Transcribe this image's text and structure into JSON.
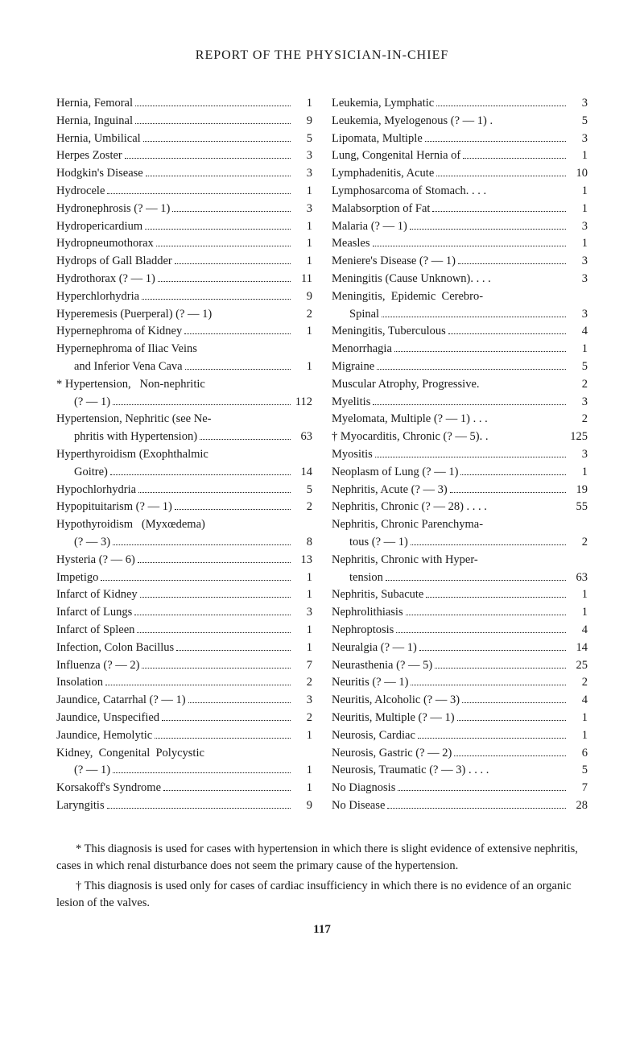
{
  "title": "REPORT OF THE PHYSICIAN-IN-CHIEF",
  "page_number": "117",
  "left": [
    {
      "label": "Hernia, Femoral",
      "num": "1"
    },
    {
      "label": "Hernia, Inguinal",
      "num": "9"
    },
    {
      "label": "Hernia, Umbilical",
      "num": "5"
    },
    {
      "label": "Herpes Zoster",
      "num": "3"
    },
    {
      "label": "Hodgkin's Disease",
      "num": "3"
    },
    {
      "label": "Hydrocele",
      "num": "1"
    },
    {
      "label": "Hydronephrosis (? — 1)",
      "num": "3"
    },
    {
      "label": "Hydropericardium",
      "num": "1"
    },
    {
      "label": "Hydropneumothorax",
      "num": "1"
    },
    {
      "label": "Hydrops of Gall Bladder",
      "num": "1"
    },
    {
      "label": "Hydrothorax (? — 1)",
      "num": "11"
    },
    {
      "label": "Hyperchlorhydria",
      "num": "9"
    },
    {
      "label": "Hyperemesis (Puerperal) (? — 1)",
      "num": "2",
      "nodots": true
    },
    {
      "label": "Hypernephroma of Kidney",
      "num": "1"
    },
    {
      "label": "Hypernephroma of Iliac Veins",
      "cont": true
    },
    {
      "label": "and Inferior Vena Cava",
      "num": "1",
      "indent": true
    },
    {
      "label": "* Hypertension,   Non-nephritic",
      "cont": true
    },
    {
      "label": "(? — 1)",
      "num": "112",
      "indent": true
    },
    {
      "label": "Hypertension, Nephritic (see Ne-",
      "cont": true
    },
    {
      "label": "phritis with Hypertension)",
      "num": "63",
      "indent": true
    },
    {
      "label": "Hyperthyroidism (Exophthalmic",
      "cont": true
    },
    {
      "label": "Goitre)",
      "num": "14",
      "indent": true
    },
    {
      "label": "Hypochlorhydria",
      "num": "5"
    },
    {
      "label": "Hypopituitarism (? — 1)",
      "num": "2"
    },
    {
      "label": "Hypothyroidism   (Myxœdema)",
      "cont": true
    },
    {
      "label": "(? — 3)",
      "num": "8",
      "indent": true
    },
    {
      "label": "Hysteria (? — 6)",
      "num": "13"
    },
    {
      "label": "Impetigo",
      "num": "1"
    },
    {
      "label": "Infarct of Kidney",
      "num": "1"
    },
    {
      "label": "Infarct of Lungs",
      "num": "3"
    },
    {
      "label": "Infarct of Spleen",
      "num": "1"
    },
    {
      "label": "Infection, Colon Bacillus",
      "num": "1"
    },
    {
      "label": "Influenza (? — 2)",
      "num": "7"
    },
    {
      "label": "Insolation",
      "num": "2"
    },
    {
      "label": "Jaundice, Catarrhal (? — 1)",
      "num": "3"
    },
    {
      "label": "Jaundice, Unspecified",
      "num": "2"
    },
    {
      "label": "Jaundice, Hemolytic",
      "num": "1"
    },
    {
      "label": "Kidney,  Congenital  Polycystic",
      "cont": true
    },
    {
      "label": "(? — 1)",
      "num": "1",
      "indent": true
    },
    {
      "label": "Korsakoff's Syndrome",
      "num": "1"
    },
    {
      "label": "Laryngitis",
      "num": "9"
    }
  ],
  "right": [
    {
      "label": "Leukemia, Lymphatic",
      "num": "3"
    },
    {
      "label": "Leukemia, Myelogenous (? — 1) .",
      "num": "5",
      "nodots": true
    },
    {
      "label": "Lipomata, Multiple",
      "num": "3"
    },
    {
      "label": "Lung, Congenital Hernia of",
      "num": "1"
    },
    {
      "label": "Lymphadenitis, Acute",
      "num": "10"
    },
    {
      "label": "Lymphosarcoma of Stomach. . . .",
      "num": "1",
      "nodots": true
    },
    {
      "label": "Malabsorption of Fat",
      "num": "1"
    },
    {
      "label": "Malaria (? — 1)",
      "num": "3"
    },
    {
      "label": "Measles",
      "num": "1"
    },
    {
      "label": "Meniere's Disease (? — 1)",
      "num": "3"
    },
    {
      "label": "Meningitis (Cause Unknown). . . .",
      "num": "3",
      "nodots": true
    },
    {
      "label": "Meningitis,  Epidemic  Cerebro-",
      "cont": true
    },
    {
      "label": "Spinal",
      "num": "3",
      "indent": true
    },
    {
      "label": "Meningitis, Tuberculous",
      "num": "4"
    },
    {
      "label": "Menorrhagia",
      "num": "1"
    },
    {
      "label": "Migraine",
      "num": "5"
    },
    {
      "label": "Muscular Atrophy, Progressive.",
      "num": "2",
      "nodots": true
    },
    {
      "label": "Myelitis",
      "num": "3"
    },
    {
      "label": "Myelomata, Multiple (? — 1) . . .",
      "num": "2",
      "nodots": true
    },
    {
      "label": "† Myocarditis, Chronic (? — 5). .",
      "num": "125",
      "nodots": true
    },
    {
      "label": "Myositis",
      "num": "3"
    },
    {
      "label": "Neoplasm of Lung (? — 1)",
      "num": "1"
    },
    {
      "label": "Nephritis, Acute (? — 3)",
      "num": "19"
    },
    {
      "label": "Nephritis, Chronic (? — 28) . . . .",
      "num": "55",
      "nodots": true
    },
    {
      "label": "Nephritis, Chronic Parenchyma-",
      "cont": true
    },
    {
      "label": "tous (? — 1)",
      "num": "2",
      "indent": true
    },
    {
      "label": "Nephritis, Chronic with Hyper-",
      "cont": true
    },
    {
      "label": "tension",
      "num": "63",
      "indent": true
    },
    {
      "label": "Nephritis, Subacute",
      "num": "1"
    },
    {
      "label": "Nephrolithiasis",
      "num": "1"
    },
    {
      "label": "Nephroptosis",
      "num": "4"
    },
    {
      "label": "Neuralgia (? — 1)",
      "num": "14"
    },
    {
      "label": "Neurasthenia (? — 5)",
      "num": "25"
    },
    {
      "label": "Neuritis (? — 1)",
      "num": "2"
    },
    {
      "label": "Neuritis, Alcoholic (? — 3)",
      "num": "4"
    },
    {
      "label": "Neuritis, Multiple (? — 1)",
      "num": "1"
    },
    {
      "label": "Neurosis, Cardiac",
      "num": "1"
    },
    {
      "label": "Neurosis, Gastric (? — 2)",
      "num": "6"
    },
    {
      "label": "Neurosis, Traumatic (? — 3) . . . .",
      "num": "5",
      "nodots": true
    },
    {
      "label": "No Diagnosis",
      "num": "7"
    },
    {
      "label": "No Disease",
      "num": "28"
    }
  ],
  "footnotes": [
    "* This diagnosis is used for cases with hypertension in which there is slight evidence of extensive nephritis, cases in which renal disturbance does not seem the primary cause of the hypertension.",
    "† This diagnosis is used only for cases of cardiac insufficiency in which there is no evidence of an organic lesion of the valves."
  ]
}
